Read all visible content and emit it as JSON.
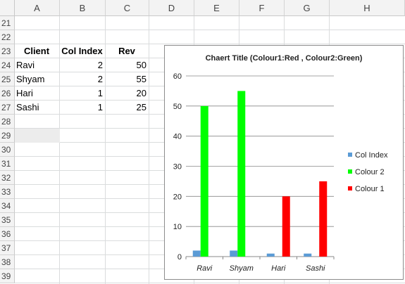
{
  "columns": [
    "A",
    "B",
    "C",
    "D",
    "E",
    "F",
    "G",
    "H"
  ],
  "rows": [
    "21",
    "22",
    "23",
    "24",
    "25",
    "26",
    "27",
    "28",
    "29",
    "30",
    "31",
    "32",
    "33",
    "34",
    "35",
    "36",
    "37",
    "38",
    "39"
  ],
  "table": {
    "headers": [
      "Client",
      "Col Index",
      "Rev"
    ],
    "data": [
      [
        "Ravi",
        "2",
        "50"
      ],
      [
        "Shyam",
        "2",
        "55"
      ],
      [
        "Hari",
        "1",
        "20"
      ],
      [
        "Sashi",
        "1",
        "25"
      ]
    ]
  },
  "chart_data": {
    "type": "bar",
    "title": "Chaert Title (Colour1:Red , Colour2:Green)",
    "categories": [
      "Ravi",
      "Shyam",
      "Hari",
      "Sashi"
    ],
    "series": [
      {
        "name": "Col Index",
        "values": [
          2,
          2,
          1,
          1
        ],
        "color": "#5b9bd5"
      },
      {
        "name": "Colour 2",
        "values": [
          50,
          55,
          0,
          0
        ],
        "color": "#00ff00"
      },
      {
        "name": "Colour 1",
        "values": [
          0,
          0,
          20,
          25
        ],
        "color": "#ff0000"
      }
    ],
    "yticks": [
      "0",
      "10",
      "20",
      "30",
      "40",
      "50",
      "60"
    ],
    "ylim": [
      0,
      60
    ],
    "grid": true,
    "legend": "right"
  }
}
